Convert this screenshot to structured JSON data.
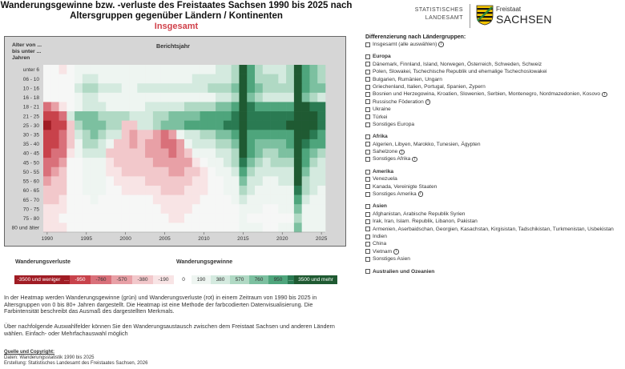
{
  "header": {
    "title_line1": "Wanderungsgewinne bzw. -verluste des Freistaates Sachsen 1990 bis 2025 nach",
    "title_line2": "Altersgruppen gegenüber Ländern / Kontinenten",
    "subtitle": "Insgesamt"
  },
  "logo": {
    "left_line1": "STATISTISCHES",
    "left_line2": "LANDESAMT",
    "right_line1": "Freistaat",
    "right_line2": "SACHSEN"
  },
  "chart_data": {
    "type": "heatmap",
    "title": "Berichtsjahr",
    "ylabel": "Alter von ... bis unter ... Jahren",
    "y_categories": [
      "unter 6",
      "06 - 10",
      "10 - 16",
      "16 - 18",
      "18 - 21",
      "21 - 25",
      "25 - 30",
      "30 - 35",
      "35 - 40",
      "40 - 45",
      "45 - 50",
      "50 - 55",
      "55 - 60",
      "60 - 65",
      "65 - 70",
      "70 - 75",
      "75 - 80",
      "80 und älter"
    ],
    "x_range": [
      1990,
      2025
    ],
    "x_ticks": [
      1990,
      1995,
      2000,
      2005,
      2010,
      2015,
      2020,
      2025
    ],
    "color_scale": {
      "negative": [
        "#a01c24",
        "#c8424b",
        "#d9707a",
        "#e8a0a6",
        "#f2c8cb",
        "#f8e4e5"
      ],
      "positive": [
        "#eef5f1",
        "#d4eadf",
        "#b0d9c4",
        "#7cc0a0",
        "#4ea57c",
        "#2a7a52",
        "#1f5a32"
      ]
    },
    "values": [
      [
        0,
        0,
        -100,
        0,
        150,
        200,
        120,
        100,
        100,
        80,
        60,
        60,
        80,
        100,
        120,
        120,
        100,
        120,
        140,
        160,
        160,
        200,
        250,
        300,
        500,
        3500,
        1200,
        600,
        400,
        450,
        400,
        500,
        3500,
        1300,
        800,
        600
      ],
      [
        0,
        0,
        0,
        0,
        200,
        350,
        250,
        150,
        120,
        120,
        100,
        100,
        120,
        150,
        200,
        200,
        150,
        180,
        200,
        250,
        250,
        300,
        350,
        400,
        600,
        3500,
        1400,
        700,
        500,
        550,
        450,
        600,
        3500,
        1500,
        900,
        700
      ],
      [
        0,
        0,
        0,
        0,
        350,
        650,
        500,
        350,
        300,
        250,
        200,
        200,
        250,
        300,
        350,
        350,
        300,
        350,
        400,
        450,
        450,
        500,
        550,
        650,
        800,
        3500,
        1400,
        800,
        600,
        650,
        550,
        700,
        3500,
        1600,
        1000,
        800
      ],
      [
        0,
        0,
        0,
        0,
        150,
        300,
        250,
        200,
        150,
        120,
        100,
        80,
        100,
        120,
        150,
        150,
        150,
        150,
        150,
        200,
        200,
        220,
        250,
        350,
        500,
        3500,
        900,
        500,
        350,
        350,
        300,
        400,
        3500,
        1000,
        600,
        450
      ],
      [
        -900,
        -400,
        -100,
        50,
        200,
        400,
        350,
        250,
        200,
        200,
        200,
        200,
        200,
        300,
        400,
        450,
        400,
        450,
        500,
        600,
        650,
        700,
        800,
        900,
        1200,
        3500,
        2200,
        1500,
        1400,
        1400,
        1300,
        1500,
        3500,
        3500,
        2600,
        2000
      ],
      [
        -2200,
        -1800,
        -1200,
        400,
        850,
        1000,
        900,
        650,
        600,
        650,
        500,
        400,
        350,
        400,
        550,
        700,
        800,
        900,
        1000,
        1100,
        1200,
        1300,
        1500,
        1700,
        2000,
        3500,
        2700,
        2500,
        2400,
        2500,
        2600,
        2800,
        3500,
        3500,
        3000,
        2600
      ],
      [
        -2600,
        -2400,
        -1600,
        -300,
        600,
        900,
        950,
        900,
        650,
        550,
        -200,
        -150,
        250,
        300,
        500,
        800,
        900,
        1000,
        1200,
        1300,
        1400,
        1600,
        1800,
        2000,
        2300,
        3500,
        2700,
        2400,
        2300,
        2500,
        2700,
        3000,
        3500,
        3500,
        3200,
        2900
      ],
      [
        -2300,
        -2000,
        -1300,
        -200,
        400,
        750,
        900,
        600,
        400,
        300,
        -300,
        -400,
        -200,
        -300,
        -500,
        -700,
        -400,
        150,
        250,
        400,
        550,
        700,
        850,
        1000,
        1300,
        3500,
        1800,
        1400,
        1200,
        1300,
        1500,
        1600,
        3500,
        3000,
        2200,
        1700
      ],
      [
        -2000,
        -1700,
        -1100,
        -150,
        200,
        500,
        550,
        400,
        200,
        -150,
        -300,
        -350,
        -300,
        -400,
        -550,
        -700,
        -650,
        -500,
        150,
        250,
        350,
        450,
        550,
        700,
        1000,
        3500,
        1500,
        1100,
        900,
        1000,
        1100,
        1200,
        3500,
        2400,
        1500,
        1200
      ],
      [
        -1500,
        -1200,
        -800,
        -100,
        100,
        250,
        300,
        250,
        -150,
        -250,
        -300,
        -250,
        -250,
        -350,
        -400,
        -550,
        -600,
        -500,
        -300,
        100,
        150,
        200,
        300,
        400,
        700,
        3500,
        1200,
        800,
        600,
        700,
        800,
        900,
        3500,
        1800,
        900,
        700
      ],
      [
        -900,
        -700,
        -500,
        0,
        50,
        150,
        200,
        150,
        -100,
        -150,
        -200,
        -200,
        -200,
        -250,
        -350,
        -400,
        -450,
        -450,
        -350,
        -100,
        50,
        100,
        200,
        300,
        500,
        2000,
        900,
        600,
        450,
        500,
        500,
        600,
        3500,
        1200,
        600,
        450
      ],
      [
        -600,
        -400,
        -300,
        0,
        0,
        100,
        150,
        100,
        -50,
        -100,
        -150,
        -150,
        -150,
        -200,
        -250,
        -300,
        -350,
        -350,
        -300,
        -150,
        -50,
        50,
        100,
        150,
        300,
        1200,
        600,
        400,
        300,
        300,
        350,
        400,
        3500,
        800,
        400,
        300
      ],
      [
        -400,
        -300,
        -200,
        0,
        0,
        80,
        100,
        80,
        0,
        -50,
        -80,
        -100,
        -100,
        -150,
        -200,
        -200,
        -250,
        -250,
        -200,
        -100,
        -50,
        0,
        50,
        100,
        200,
        800,
        400,
        250,
        200,
        200,
        250,
        300,
        3000,
        600,
        300,
        250
      ],
      [
        -300,
        -200,
        -150,
        0,
        0,
        60,
        80,
        60,
        0,
        0,
        -50,
        -50,
        -50,
        -80,
        -100,
        -150,
        -150,
        -150,
        -100,
        -80,
        -40,
        0,
        30,
        60,
        150,
        500,
        250,
        200,
        150,
        150,
        150,
        200,
        2200,
        500,
        250,
        200
      ],
      [
        -200,
        -150,
        -100,
        0,
        0,
        40,
        60,
        40,
        0,
        0,
        0,
        0,
        0,
        0,
        -50,
        -80,
        -80,
        -80,
        -50,
        -30,
        0,
        0,
        20,
        40,
        100,
        300,
        150,
        100,
        80,
        80,
        100,
        150,
        1600,
        300,
        150,
        120
      ],
      [
        -100,
        -80,
        -50,
        0,
        0,
        20,
        40,
        20,
        0,
        0,
        0,
        0,
        0,
        0,
        0,
        -30,
        -40,
        -30,
        -20,
        0,
        0,
        0,
        0,
        20,
        50,
        150,
        80,
        60,
        50,
        50,
        60,
        80,
        1000,
        200,
        100,
        80
      ],
      [
        -50,
        -40,
        0,
        0,
        0,
        0,
        20,
        0,
        0,
        0,
        0,
        0,
        0,
        0,
        0,
        0,
        -20,
        -20,
        0,
        0,
        0,
        0,
        0,
        0,
        20,
        80,
        50,
        40,
        30,
        30,
        40,
        50,
        600,
        150,
        80,
        60
      ],
      [
        -80,
        -60,
        -20,
        0,
        0,
        20,
        40,
        20,
        0,
        0,
        0,
        0,
        0,
        0,
        0,
        0,
        0,
        0,
        0,
        0,
        0,
        0,
        0,
        20,
        40,
        100,
        80,
        60,
        50,
        50,
        60,
        80,
        900,
        200,
        120,
        100
      ]
    ]
  },
  "legend": {
    "loss_title": "Wanderungsverluste",
    "gain_title": "Wanderungsgewinne",
    "loss_items": [
      "-3500 und weniger",
      "…",
      "-950",
      "-760",
      "-570",
      "-380",
      "-190"
    ],
    "zero": "0",
    "gain_items": [
      "190",
      "380",
      "570",
      "760",
      "950",
      "…",
      "3500 und mehr"
    ]
  },
  "description": {
    "para1": "In der Heatmap werden Wanderungsgewinne (grün) und Wanderungsverluste (rot) in einem Zeitraum von 1990 bis 2025 in Altersgruppen von 0 bis 80+ Jahren dargestellt. Die Heatmap ist eine Methode der farbcodierten Datenvisualisierung. Die Farbintensität beschreibt das Ausmaß des dargestellten Merkmals.",
    "para2": "Über nachfolgende Auswahlfelder können Sie den Wanderungsaustausch zwischen dem Freistaat Sachsen und anderen Ländern wählen. Einfach- oder Mehrfachauswahl möglich"
  },
  "source": {
    "title": "Quelle und Copyright:",
    "line1": "Daten: Wanderungsstatistik 1990 bis 2025",
    "line2": "Erstellung: Statistisches Landesamt des Freistaates Sachsen, 2026"
  },
  "filter": {
    "heading": "Differenzierung nach Ländergruppen:",
    "all_label": "Insgesamt (alle auswählen)",
    "groups": [
      {
        "name": "Europa",
        "items": [
          {
            "label": "Dänemark, Finnland, Island, Norwegen, Österreich, Schweden, Schweiz"
          },
          {
            "label": "Polen, Slowakei, Tschechische Republik und ehemalige Tschechoslowakei"
          },
          {
            "label": "Bulgarien, Rumänien, Ungarn"
          },
          {
            "label": "Griechenland, Italien, Portugal, Spanien, Zypern"
          },
          {
            "label": "Bosnien und Herzegowina, Kroatien, Slowenien, Serbien, Montenegro, Nordmazedonien, Kosovo",
            "info": true
          },
          {
            "label": "Russische Föderation",
            "info": true
          },
          {
            "label": "Ukraine"
          },
          {
            "label": "Türkei"
          },
          {
            "label": "Sonstiges Europa"
          }
        ]
      },
      {
        "name": "Afrika",
        "items": [
          {
            "label": "Algerien, Libyen, Marokko, Tunesien, Ägypten"
          },
          {
            "label": "Sahelzone",
            "info": true
          },
          {
            "label": "Sonstiges Afrika",
            "info": true
          }
        ]
      },
      {
        "name": "Amerika",
        "items": [
          {
            "label": "Venezuela"
          },
          {
            "label": "Kanada, Vereinigte Staaten"
          },
          {
            "label": "Sonstiges Amerika",
            "info": true
          }
        ]
      },
      {
        "name": "Asien",
        "items": [
          {
            "label": "Afghanistan, Arabische Republik Syrien"
          },
          {
            "label": "Irak, Iran, Islam. Republik, Libanon, Pakistan"
          },
          {
            "label": "Armenien, Aserbaidschan, Georgien, Kasachstan, Kirgisistan, Tadschikistan, Turkmenistan, Usbekistan"
          },
          {
            "label": "Indien"
          },
          {
            "label": "China"
          },
          {
            "label": "Vietnam",
            "info": true
          },
          {
            "label": "Sonstiges Asien"
          }
        ]
      },
      {
        "name": "Australien und Ozeanien",
        "items": []
      }
    ]
  }
}
